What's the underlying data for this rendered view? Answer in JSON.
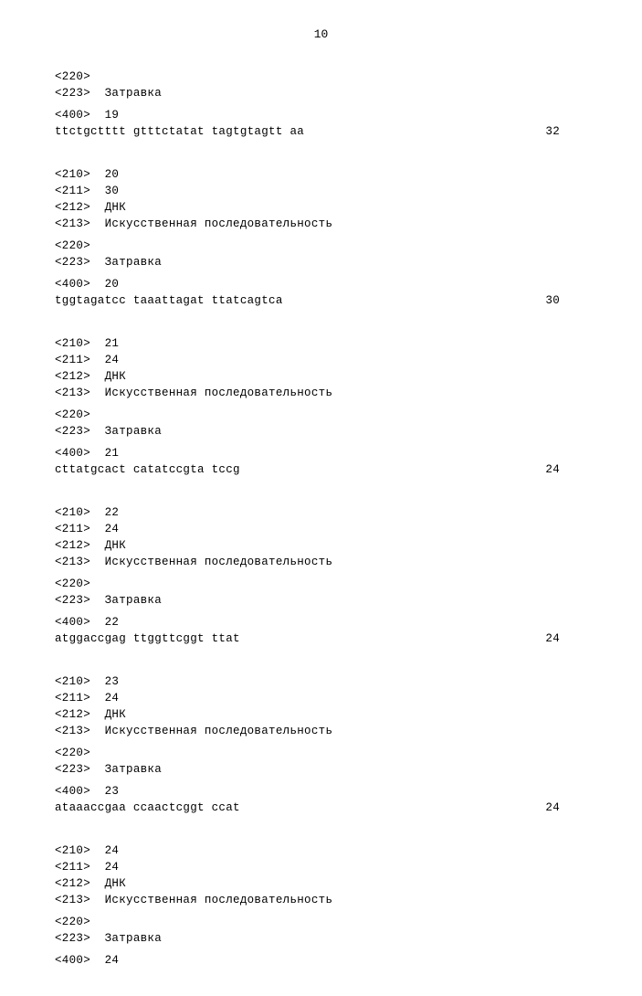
{
  "page_number": "10",
  "fontsize_pt": 12.5,
  "font_family": "Courier New",
  "text_color": "#000000",
  "background_color": "#ffffff",
  "entries": [
    {
      "pre_tags": [
        {
          "tag": "<220>",
          "value": ""
        },
        {
          "tag": "<223>",
          "value": "Затравка"
        }
      ],
      "seq_tag": {
        "tag": "<400>",
        "value": "19"
      },
      "sequence": "ttctgctttt gtttctatat tagtgtagtt aa",
      "length": "32"
    },
    {
      "header": [
        {
          "tag": "<210>",
          "value": "20"
        },
        {
          "tag": "<211>",
          "value": "30"
        },
        {
          "tag": "<212>",
          "value": "ДНК"
        },
        {
          "tag": "<213>",
          "value": "Искусственная последовательность"
        }
      ],
      "pre_tags": [
        {
          "tag": "<220>",
          "value": ""
        },
        {
          "tag": "<223>",
          "value": "Затравка"
        }
      ],
      "seq_tag": {
        "tag": "<400>",
        "value": "20"
      },
      "sequence": "tggtagatcc taaattagat ttatcagtca",
      "length": "30"
    },
    {
      "header": [
        {
          "tag": "<210>",
          "value": "21"
        },
        {
          "tag": "<211>",
          "value": "24"
        },
        {
          "tag": "<212>",
          "value": "ДНК"
        },
        {
          "tag": "<213>",
          "value": "Искусственная последовательность"
        }
      ],
      "pre_tags": [
        {
          "tag": "<220>",
          "value": ""
        },
        {
          "tag": "<223>",
          "value": "Затравка"
        }
      ],
      "seq_tag": {
        "tag": "<400>",
        "value": "21"
      },
      "sequence": "cttatgcact catatccgta tccg",
      "length": "24"
    },
    {
      "header": [
        {
          "tag": "<210>",
          "value": "22"
        },
        {
          "tag": "<211>",
          "value": "24"
        },
        {
          "tag": "<212>",
          "value": "ДНК"
        },
        {
          "tag": "<213>",
          "value": "Искусственная последовательность"
        }
      ],
      "pre_tags": [
        {
          "tag": "<220>",
          "value": ""
        },
        {
          "tag": "<223>",
          "value": "Затравка"
        }
      ],
      "seq_tag": {
        "tag": "<400>",
        "value": "22"
      },
      "sequence": "atggaccgag ttggttcggt ttat",
      "length": "24"
    },
    {
      "header": [
        {
          "tag": "<210>",
          "value": "23"
        },
        {
          "tag": "<211>",
          "value": "24"
        },
        {
          "tag": "<212>",
          "value": "ДНК"
        },
        {
          "tag": "<213>",
          "value": "Искусственная последовательность"
        }
      ],
      "pre_tags": [
        {
          "tag": "<220>",
          "value": ""
        },
        {
          "tag": "<223>",
          "value": "Затравка"
        }
      ],
      "seq_tag": {
        "tag": "<400>",
        "value": "23"
      },
      "sequence": "ataaaccgaa ccaactcggt ccat",
      "length": "24"
    },
    {
      "header": [
        {
          "tag": "<210>",
          "value": "24"
        },
        {
          "tag": "<211>",
          "value": "24"
        },
        {
          "tag": "<212>",
          "value": "ДНК"
        },
        {
          "tag": "<213>",
          "value": "Искусственная последовательность"
        }
      ],
      "pre_tags": [
        {
          "tag": "<220>",
          "value": ""
        },
        {
          "tag": "<223>",
          "value": "Затравка"
        }
      ],
      "seq_tag": {
        "tag": "<400>",
        "value": "24"
      },
      "sequence": "",
      "length": ""
    }
  ]
}
